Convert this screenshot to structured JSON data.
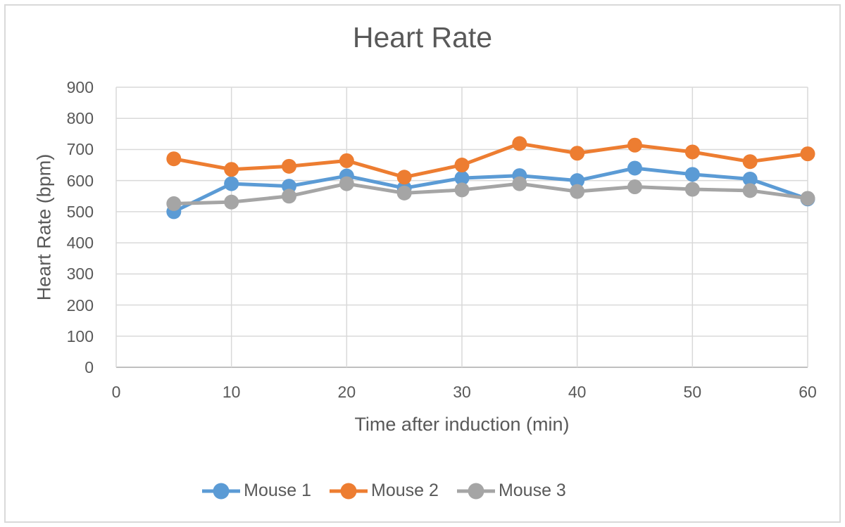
{
  "frame": {
    "background": "#ffffff",
    "border_color": "#d9d9d9"
  },
  "chart_data": {
    "type": "line",
    "title": "Heart Rate",
    "xlabel": "Time after induction (min)",
    "ylabel": "Heart Rate (bpm)",
    "x": [
      5,
      10,
      15,
      20,
      25,
      30,
      35,
      40,
      45,
      50,
      55,
      60
    ],
    "series": [
      {
        "name": "Mouse 1",
        "color": "#5B9BD5",
        "values": [
          500,
          590,
          582,
          615,
          576,
          608,
          616,
          600,
          640,
          620,
          605,
          541
        ]
      },
      {
        "name": "Mouse 2",
        "color": "#ED7D31",
        "values": [
          670,
          636,
          646,
          664,
          611,
          650,
          719,
          688,
          714,
          692,
          661,
          686
        ]
      },
      {
        "name": "Mouse 3",
        "color": "#A5A5A5",
        "values": [
          526,
          531,
          550,
          590,
          560,
          570,
          590,
          565,
          580,
          572,
          568,
          543
        ]
      }
    ],
    "xlim": [
      0,
      60
    ],
    "ylim": [
      0,
      900
    ],
    "x_ticks": [
      0,
      10,
      20,
      30,
      40,
      50,
      60
    ],
    "y_ticks": [
      0,
      100,
      200,
      300,
      400,
      500,
      600,
      700,
      800,
      900
    ],
    "grid": true,
    "legend_position": "bottom",
    "colors": {
      "text": "#595959",
      "grid": "#d9d9d9",
      "axis": "#bfbfbf"
    }
  }
}
